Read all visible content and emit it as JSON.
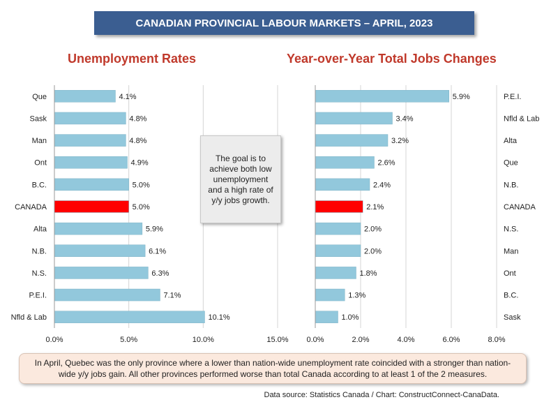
{
  "header": {
    "title": "CANADIAN PROVINCIAL LABOUR MARKETS – APRIL, 2023"
  },
  "colors": {
    "bar": "#92c8dc",
    "highlight": "#ff0000",
    "banner": "#3b5e91",
    "subtitle": "#c0392b"
  },
  "note": "The goal is to achieve both low unemployment and a high rate of y/y jobs growth.",
  "summary": "In April, Quebec was the only province where a lower than nation-wide unemployment rate coincided with a stronger than nation-wide y/y jobs gain. All other provinces performed worse than total Canada according to at least 1 of the 2 measures.",
  "source": "Data source: Statistics Canada / Chart: ConstructConnect-CanaData.",
  "chart_data": [
    {
      "type": "bar",
      "orientation": "horizontal",
      "title": "Unemployment Rates",
      "categories": [
        "Que",
        "Sask",
        "Man",
        "Ont",
        "B.C.",
        "CANADA",
        "Alta",
        "N.B.",
        "N.S.",
        "P.E.I.",
        "Nfld & Lab"
      ],
      "values": [
        4.1,
        4.8,
        4.8,
        4.9,
        5.0,
        5.0,
        5.9,
        6.1,
        6.3,
        7.1,
        10.1
      ],
      "value_labels": [
        "4.1%",
        "4.8%",
        "4.8%",
        "4.9%",
        "5.0%",
        "5.0%",
        "5.9%",
        "6.1%",
        "6.3%",
        "7.1%",
        "10.1%"
      ],
      "highlight": "CANADA",
      "xlim": [
        0,
        15
      ],
      "ticks": [
        0,
        5,
        10,
        15
      ],
      "tick_labels": [
        "0.0%",
        "5.0%",
        "10.0%",
        "15.0%"
      ],
      "grid": true
    },
    {
      "type": "bar",
      "orientation": "horizontal",
      "title": "Year-over-Year Total Jobs Changes",
      "categories": [
        "P.E.I.",
        "Nfld & Lab",
        "Alta",
        "Que",
        "N.B.",
        "CANADA",
        "N.S.",
        "Man",
        "Ont",
        "B.C.",
        "Sask"
      ],
      "values": [
        5.9,
        3.4,
        3.2,
        2.6,
        2.4,
        2.1,
        2.0,
        2.0,
        1.8,
        1.3,
        1.0
      ],
      "value_labels": [
        "5.9%",
        "3.4%",
        "3.2%",
        "2.6%",
        "2.4%",
        "2.1%",
        "2.0%",
        "2.0%",
        "1.8%",
        "1.3%",
        "1.0%"
      ],
      "highlight": "CANADA",
      "xlim": [
        0,
        8
      ],
      "ticks": [
        0,
        2,
        4,
        6,
        8
      ],
      "tick_labels": [
        "0.0%",
        "2.0%",
        "4.0%",
        "6.0%",
        "8.0%"
      ],
      "grid": true
    }
  ]
}
